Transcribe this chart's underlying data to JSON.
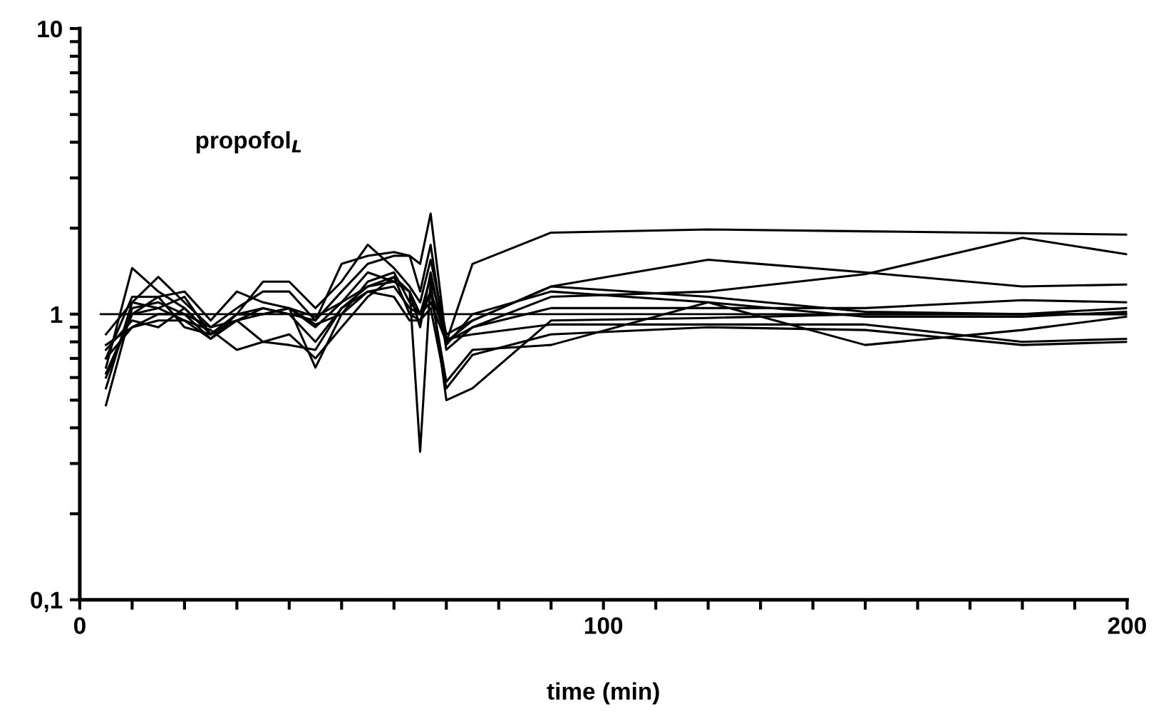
{
  "chart_data": {
    "type": "line",
    "xlabel": "time (min)",
    "log": "y",
    "grid": false,
    "legend": false,
    "marker": "none",
    "line_style": "solid",
    "annotations": [
      "propofol$_{L}$"
    ],
    "x": [
      5,
      10,
      15,
      20,
      25,
      30,
      35,
      40,
      45,
      50,
      55,
      60,
      63,
      65,
      67,
      70,
      75,
      90,
      120,
      150,
      180,
      200
    ],
    "xlim": [
      0,
      200
    ],
    "ylim": [
      0.1,
      10
    ],
    "xticks": [
      0,
      {
        "value": 10,
        "label": null
      },
      {
        "value": 20,
        "label": null
      },
      {
        "value": 30,
        "label": null
      },
      {
        "value": 40,
        "label": null
      },
      {
        "value": 50,
        "label": null
      },
      {
        "value": 60,
        "label": null
      },
      {
        "value": 70,
        "label": null
      },
      {
        "value": 80,
        "label": null
      },
      {
        "value": 90,
        "label": null
      },
      100,
      {
        "value": 110,
        "label": null
      },
      {
        "value": 120,
        "label": null
      },
      {
        "value": 130,
        "label": null
      },
      {
        "value": 140,
        "label": null
      },
      {
        "value": 150,
        "label": null
      },
      {
        "value": 160,
        "label": null
      },
      {
        "value": 170,
        "label": null
      },
      {
        "value": 180,
        "label": null
      },
      {
        "value": 190,
        "label": null
      },
      200
    ],
    "yticks": [
      {
        "value": 0.1,
        "label": "0,1"
      },
      {
        "value": 0.2,
        "label": null
      },
      {
        "value": 0.3,
        "label": null
      },
      {
        "value": 0.4,
        "label": null
      },
      {
        "value": 0.5,
        "label": null
      },
      {
        "value": 0.6,
        "label": null
      },
      {
        "value": 0.7,
        "label": null
      },
      {
        "value": 0.8,
        "label": null
      },
      {
        "value": 0.9,
        "label": null
      },
      1,
      {
        "value": 2,
        "label": null
      },
      {
        "value": 3,
        "label": null
      },
      {
        "value": 4,
        "label": null
      },
      {
        "value": 5,
        "label": null
      },
      {
        "value": 6,
        "label": null
      },
      {
        "value": 7,
        "label": null
      },
      {
        "value": 8,
        "label": null
      },
      {
        "value": 9,
        "label": null
      },
      10
    ],
    "ref_lines": [
      {
        "axis": "y",
        "value": 1,
        "color": "#000000"
      }
    ],
    "series": [
      {
        "color": "#000000",
        "values": [
          0.48,
          1.05,
          1.1,
          1.0,
          0.9,
          0.95,
          1.05,
          1.0,
          0.95,
          1.2,
          1.5,
          1.6,
          1.6,
          1.5,
          2.25,
          0.8,
          1.5,
          1.93,
          1.98,
          1.95,
          1.92,
          1.9
        ]
      },
      {
        "color": "#000000",
        "values": [
          0.65,
          1.45,
          1.2,
          1.05,
          0.85,
          1.0,
          1.3,
          1.3,
          1.05,
          1.3,
          1.75,
          1.45,
          1.25,
          1.1,
          1.55,
          0.85,
          0.95,
          1.25,
          1.55,
          1.4,
          1.25,
          1.27
        ]
      },
      {
        "color": "#000000",
        "values": [
          0.55,
          1.1,
          1.35,
          1.1,
          0.9,
          1.05,
          1.2,
          1.2,
          0.95,
          1.5,
          1.6,
          1.65,
          1.6,
          1.2,
          1.75,
          0.75,
          0.9,
          1.15,
          1.2,
          1.38,
          1.85,
          1.62
        ]
      },
      {
        "color": "#000000",
        "values": [
          0.7,
          1.15,
          1.15,
          1.2,
          0.95,
          1.2,
          1.1,
          1.05,
          0.9,
          1.1,
          1.4,
          1.3,
          1.2,
          0.33,
          1.3,
          0.5,
          0.55,
          0.95,
          0.97,
          1.0,
          1.0,
          1.0
        ]
      },
      {
        "color": "#000000",
        "values": [
          0.75,
          0.95,
          0.9,
          1.05,
          0.85,
          0.95,
          0.8,
          0.85,
          0.7,
          0.9,
          1.15,
          1.35,
          1.0,
          0.95,
          1.05,
          0.55,
          0.72,
          0.85,
          0.9,
          0.88,
          0.78,
          0.8
        ]
      },
      {
        "color": "#000000",
        "values": [
          0.62,
          1.0,
          1.05,
          1.15,
          0.85,
          1.0,
          1.0,
          1.05,
          0.65,
          1.0,
          1.3,
          1.4,
          1.1,
          1.0,
          1.2,
          0.58,
          0.75,
          0.78,
          1.1,
          0.78,
          0.88,
          0.98
        ]
      },
      {
        "color": "#000000",
        "values": [
          0.85,
          1.1,
          1.05,
          0.95,
          0.88,
          0.75,
          0.8,
          0.78,
          0.75,
          1.05,
          1.2,
          1.25,
          1.05,
          1.0,
          1.1,
          0.8,
          0.95,
          1.25,
          1.15,
          1.02,
          1.0,
          1.05
        ]
      },
      {
        "color": "#000000",
        "values": [
          0.6,
          1.0,
          1.15,
          0.9,
          0.85,
          1.0,
          1.05,
          1.0,
          0.8,
          1.05,
          1.25,
          1.3,
          1.2,
          0.9,
          1.4,
          0.78,
          1.0,
          1.2,
          1.1,
          0.98,
          0.98,
          1.02
        ]
      },
      {
        "color": "#000000",
        "values": [
          0.7,
          0.9,
          1.0,
          1.0,
          0.82,
          1.0,
          1.0,
          1.05,
          0.98,
          1.1,
          1.25,
          1.35,
          1.2,
          1.0,
          1.35,
          0.8,
          0.9,
          1.05,
          1.05,
          1.05,
          1.12,
          1.1
        ]
      },
      {
        "color": "#000000",
        "values": [
          0.78,
          0.9,
          0.95,
          0.95,
          0.82,
          0.95,
          1.0,
          1.05,
          0.92,
          1.0,
          1.2,
          1.15,
          0.95,
          0.95,
          1.2,
          0.82,
          0.85,
          0.92,
          0.92,
          0.92,
          0.8,
          0.82
        ]
      }
    ]
  }
}
